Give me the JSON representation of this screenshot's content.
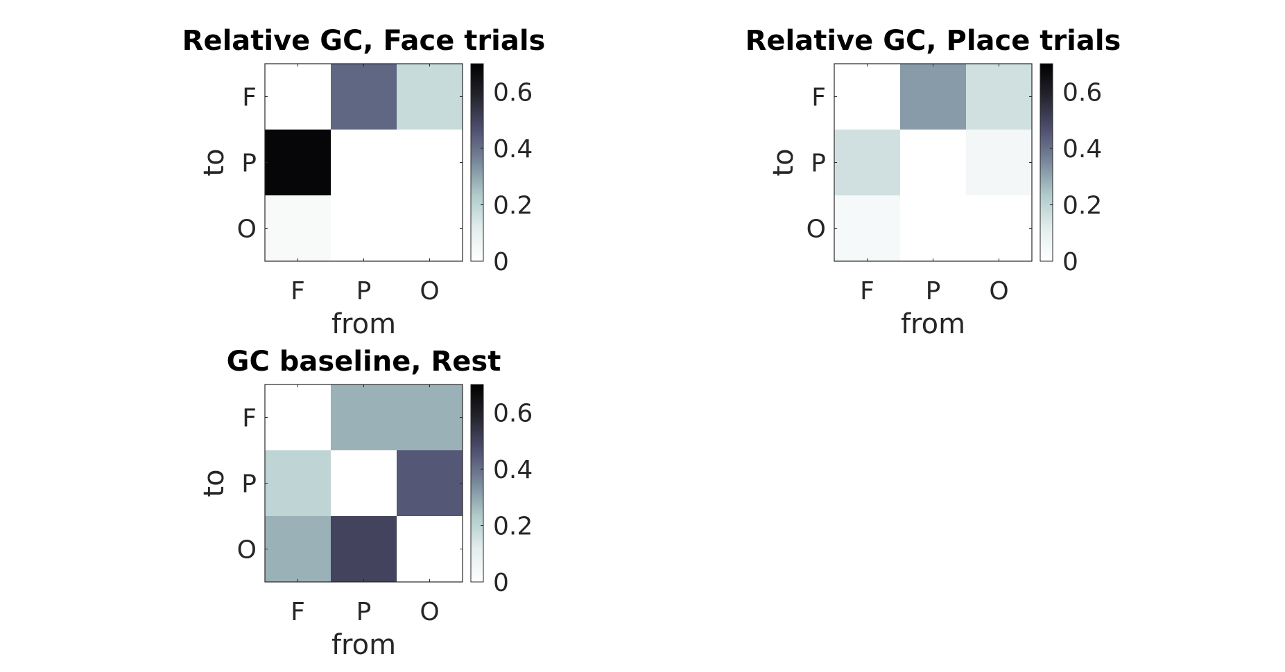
{
  "chart_data": [
    {
      "type": "heatmap",
      "title": "Relative GC, Face trials",
      "xlabel": "from",
      "ylabel": "to",
      "x_categories": [
        "F",
        "P",
        "O"
      ],
      "y_categories": [
        "F",
        "P",
        "O"
      ],
      "values": [
        [
          0.0,
          0.42,
          0.18
        ],
        [
          0.68,
          0.0,
          0.0
        ],
        [
          0.03,
          0.0,
          0.0
        ]
      ],
      "colorbar": {
        "range": [
          0,
          0.7
        ],
        "ticks": [
          "0",
          "0.2",
          "0.4",
          "0.6"
        ],
        "tick_values": [
          0,
          0.2,
          0.4,
          0.6
        ]
      }
    },
    {
      "type": "heatmap",
      "title": "Relative GC, Place trials",
      "xlabel": "from",
      "ylabel": "to",
      "x_categories": [
        "F",
        "P",
        "O"
      ],
      "y_categories": [
        "F",
        "P",
        "O"
      ],
      "values": [
        [
          0.0,
          0.32,
          0.16
        ],
        [
          0.16,
          0.0,
          0.05
        ],
        [
          0.04,
          0.0,
          0.0
        ]
      ],
      "colorbar": {
        "range": [
          0,
          0.7
        ],
        "ticks": [
          "0",
          "0.2",
          "0.4",
          "0.6"
        ],
        "tick_values": [
          0,
          0.2,
          0.4,
          0.6
        ]
      }
    },
    {
      "type": "heatmap",
      "title": "GC baseline, Rest",
      "xlabel": "from",
      "ylabel": "to",
      "x_categories": [
        "F",
        "P",
        "O"
      ],
      "y_categories": [
        "F",
        "P",
        "O"
      ],
      "values": [
        [
          0.0,
          0.28,
          0.28
        ],
        [
          0.2,
          0.0,
          0.45
        ],
        [
          0.28,
          0.5,
          0.0
        ]
      ],
      "colorbar": {
        "range": [
          0,
          0.7
        ],
        "ticks": [
          "0",
          "0.2",
          "0.4",
          "0.6"
        ],
        "tick_values": [
          0,
          0.2,
          0.4,
          0.6
        ]
      }
    }
  ],
  "colormap": {
    "name": "bone-reversed",
    "stops": [
      "#ffffff",
      "#e3eded",
      "#b0cbcb",
      "#7a8a9c",
      "#4f4f70",
      "#25252f",
      "#000000"
    ]
  }
}
